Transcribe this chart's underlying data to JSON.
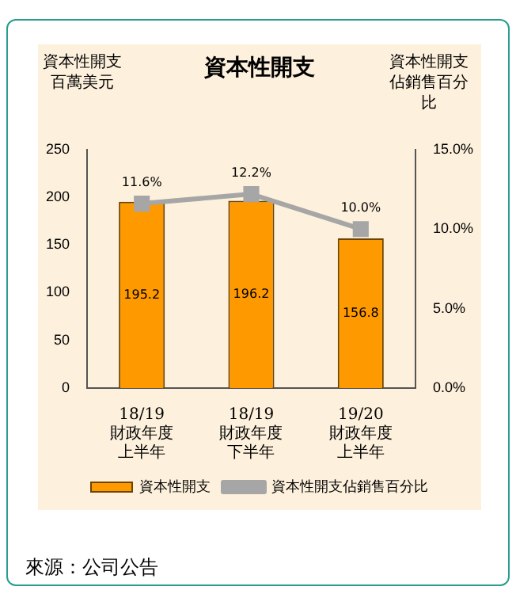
{
  "chart_data": {
    "type": "bar",
    "title": "資本性開支",
    "ylabel": "資本性開支百萬美元",
    "y2label": "資本性開支佔銷售百分比",
    "categories": [
      "18/19\n財政年度上半年",
      "18/19\n財政年度下半年",
      "19/20\n財政年度上半年"
    ],
    "series": [
      {
        "name": "資本性開支",
        "color": "#ff9900",
        "values": [
          195.2,
          196.2,
          156.8
        ],
        "value_labels": [
          "195.2",
          "196.2",
          "156.8"
        ]
      },
      {
        "name": "資本性開支佔銷售百分比",
        "type": "line",
        "axis": "y2",
        "color": "#a6a6a6",
        "marker": "square",
        "values": [
          11.6,
          12.2,
          10.0
        ],
        "value_labels": [
          "11.6%",
          "12.2%",
          "10.0%"
        ]
      }
    ],
    "ylim": [
      0,
      250
    ],
    "yticks": [
      0,
      50,
      100,
      150,
      200,
      250
    ],
    "y2lim": [
      0,
      15
    ],
    "y2ticks": [
      {
        "value": 0,
        "label": "0.0%"
      },
      {
        "value": 5,
        "label": "5.0%"
      },
      {
        "value": 10,
        "label": "10.0%"
      },
      {
        "value": 15,
        "label": "15.0%"
      }
    ],
    "grid": false,
    "legend": "bottom",
    "annotations": [
      "來源：公司公告"
    ]
  }
}
